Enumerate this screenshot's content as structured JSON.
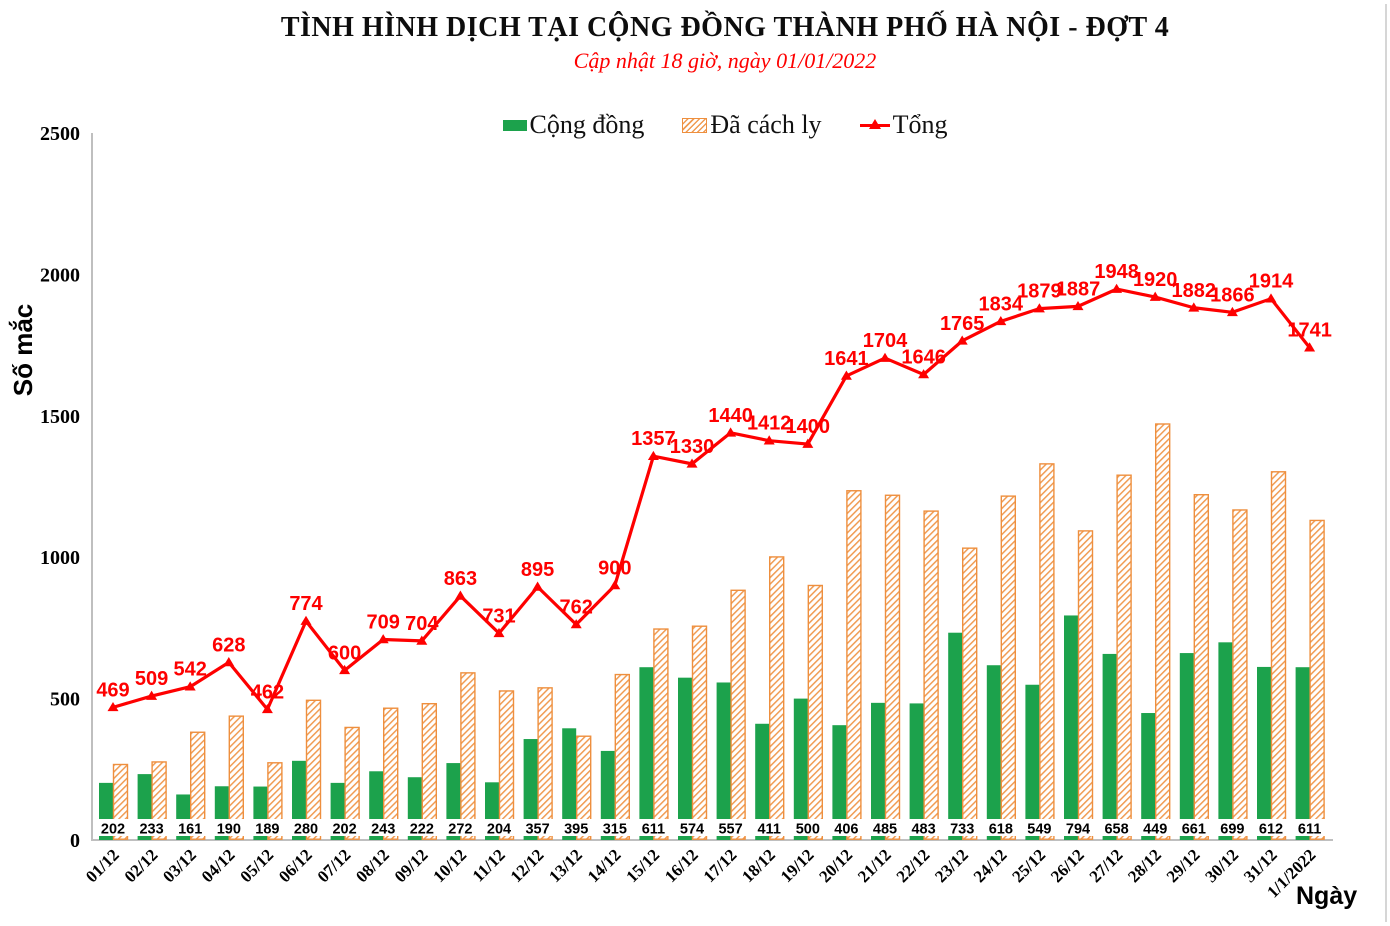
{
  "title": "TÌNH HÌNH DỊCH TẠI CỘNG ĐỒNG THÀNH PHỐ HÀ NỘI - ĐỢT 4",
  "subtitle": "Cập nhật 18 giờ, ngày 01/01/2022",
  "legend": {
    "community_label": "Cộng đồng",
    "quarantined_label": "Đã cách ly",
    "total_label": "Tổng"
  },
  "axes": {
    "y_title": "Số mắc",
    "x_title": "Ngày",
    "y_ticks": [
      0,
      500,
      1000,
      1500,
      2000,
      2500
    ]
  },
  "colors": {
    "community_green": "#1ca24c",
    "quarantined_orange_border": "#ee8f3e",
    "quarantined_orange_stripe": "#f09b52",
    "total_red": "#fe0000",
    "axis_gray": "#bfbfbf",
    "label_black": "#000000"
  },
  "chart_data": {
    "type": "combo",
    "title": "TÌNH HÌNH DỊCH TẠI CỘNG ĐỒNG THÀNH PHỐ HÀ NỘI - ĐỢT 4",
    "subtitle": "Cập nhật 18 giờ, ngày 01/01/2022",
    "xlabel": "Ngày",
    "ylabel": "Số mắc",
    "ylim": [
      0,
      2500
    ],
    "grid": false,
    "legend_position": "top",
    "categories": [
      "01/12",
      "02/12",
      "03/12",
      "04/12",
      "05/12",
      "06/12",
      "07/12",
      "08/12",
      "09/12",
      "10/12",
      "11/12",
      "12/12",
      "13/12",
      "14/12",
      "15/12",
      "16/12",
      "17/12",
      "18/12",
      "19/12",
      "20/12",
      "21/12",
      "22/12",
      "23/12",
      "24/12",
      "25/12",
      "26/12",
      "27/12",
      "28/12",
      "29/12",
      "30/12",
      "31/12",
      "1/1/2022"
    ],
    "series": [
      {
        "name": "Cộng đồng",
        "type": "bar",
        "color": "#1ca24c",
        "labels_shown": true,
        "values": [
          202,
          233,
          161,
          190,
          189,
          280,
          202,
          243,
          222,
          272,
          204,
          357,
          395,
          315,
          611,
          574,
          557,
          411,
          500,
          406,
          485,
          483,
          733,
          618,
          549,
          794,
          658,
          449,
          661,
          699,
          612,
          611
        ]
      },
      {
        "name": "Đã cách ly",
        "type": "bar",
        "style": "hatched",
        "color": "#ee8f3e",
        "labels_shown": false,
        "values": [
          267,
          276,
          381,
          438,
          273,
          494,
          398,
          466,
          482,
          591,
          527,
          538,
          367,
          585,
          746,
          756,
          883,
          1001,
          900,
          1235,
          1219,
          1163,
          1032,
          1216,
          1330,
          1093,
          1290,
          1471,
          1221,
          1167,
          1302,
          1130
        ]
      },
      {
        "name": "Tổng",
        "type": "line",
        "color": "#fe0000",
        "marker": "triangle-up",
        "labels_shown": true,
        "values": [
          469,
          509,
          542,
          628,
          462,
          774,
          600,
          709,
          704,
          863,
          731,
          895,
          762,
          900,
          1357,
          1330,
          1440,
          1412,
          1400,
          1641,
          1704,
          1646,
          1765,
          1834,
          1879,
          1887,
          1948,
          1920,
          1882,
          1866,
          1914,
          1741
        ]
      }
    ]
  }
}
